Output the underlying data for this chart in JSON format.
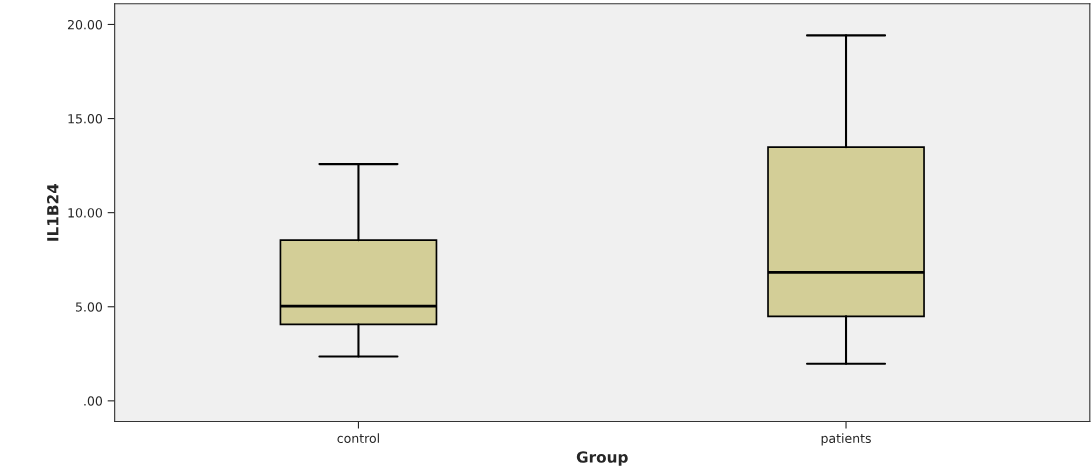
{
  "chart_data": {
    "type": "box",
    "xlabel": "Group",
    "ylabel": "IL1B24",
    "categories": [
      "control",
      "patients"
    ],
    "boxes": [
      {
        "low": 2.36,
        "q1": 4.06,
        "median": 5.03,
        "q3": 8.54,
        "high": 12.58
      },
      {
        "low": 1.97,
        "q1": 4.49,
        "median": 6.83,
        "q3": 13.48,
        "high": 19.42
      }
    ],
    "color": "#d3ce97",
    "ylim": [
      -1.1,
      21.1
    ],
    "yticks": [
      {
        "value": 0,
        "label": ".00"
      },
      {
        "value": 5,
        "label": "5.00"
      },
      {
        "value": 10,
        "label": "10.00"
      },
      {
        "value": 15,
        "label": "15.00"
      },
      {
        "value": 20,
        "label": "20.00"
      }
    ],
    "grid": false
  }
}
